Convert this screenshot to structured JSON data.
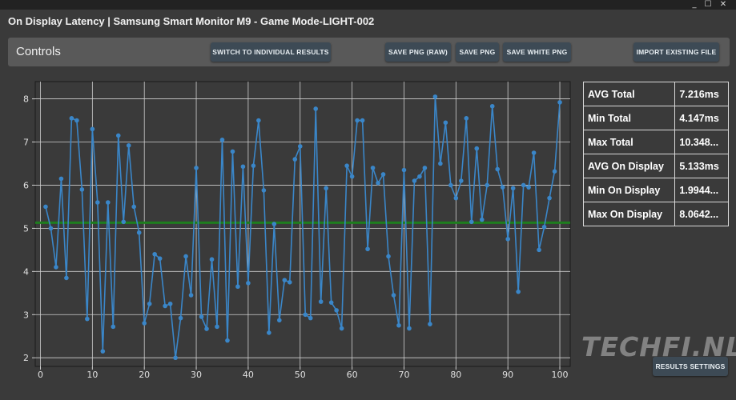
{
  "window": {
    "title": "On Display Latency | Samsung Smart Monitor M9 - Game Mode-LIGHT-002",
    "controls": [
      "_",
      "☐",
      "✕"
    ]
  },
  "controls_panel": {
    "label": "Controls",
    "buttons": {
      "switch": "SWITCH TO INDIVIDUAL RESULTS",
      "save_raw": "SAVE PNG (RAW)",
      "save_png": "SAVE PNG",
      "save_white": "SAVE WHITE PNG",
      "import": "IMPORT EXISTING FILE"
    }
  },
  "stats": [
    {
      "label": "AVG Total",
      "value": "7.216ms"
    },
    {
      "label": "Min Total",
      "value": "4.147ms"
    },
    {
      "label": "Max Total",
      "value": "10.348..."
    },
    {
      "label": "AVG On Display",
      "value": "5.133ms"
    },
    {
      "label": "Min On Display",
      "value": "1.9944..."
    },
    {
      "label": "Max On Display",
      "value": "8.0642..."
    }
  ],
  "watermark": "TECHFI.NL",
  "results_settings_label": "RESULTS SETTINGS",
  "chart_data": {
    "type": "line",
    "xlim": [
      -1,
      102
    ],
    "ylim": [
      1.8,
      8.4
    ],
    "xticks": [
      0,
      10,
      20,
      30,
      40,
      50,
      60,
      70,
      80,
      90,
      100
    ],
    "yticks": [
      2,
      3,
      4,
      5,
      6,
      7,
      8
    ],
    "grid": true,
    "series_color": "#3a86c8",
    "avg_line": {
      "value": 5.13,
      "color": "#1e7d1e"
    },
    "values": [
      5.5,
      5.0,
      4.1,
      6.15,
      3.85,
      7.55,
      7.5,
      5.9,
      2.9,
      7.3,
      5.6,
      2.15,
      5.6,
      2.72,
      7.15,
      5.15,
      6.92,
      5.5,
      4.9,
      2.8,
      3.25,
      4.4,
      4.3,
      3.2,
      3.25,
      2.0,
      2.92,
      4.35,
      3.45,
      6.4,
      2.95,
      2.67,
      4.28,
      2.72,
      7.05,
      2.4,
      6.78,
      3.65,
      6.43,
      3.73,
      6.45,
      7.5,
      5.88,
      2.58,
      5.1,
      2.87,
      3.8,
      3.75,
      6.6,
      6.9,
      3.0,
      2.92,
      7.77,
      3.3,
      5.93,
      3.28,
      3.1,
      2.68,
      6.45,
      6.2,
      7.5,
      7.5,
      4.52,
      6.4,
      6.05,
      6.25,
      4.35,
      3.45,
      2.75,
      6.35,
      2.68,
      6.1,
      6.2,
      6.4,
      2.78,
      8.05,
      6.5,
      7.45,
      6.0,
      5.7,
      6.1,
      7.55,
      5.15,
      6.85,
      5.2,
      6.0,
      7.83,
      6.37,
      5.95,
      4.75,
      5.93,
      3.53,
      6.0,
      5.95,
      6.75,
      4.5,
      5.03,
      5.7,
      6.32,
      7.92
    ]
  }
}
